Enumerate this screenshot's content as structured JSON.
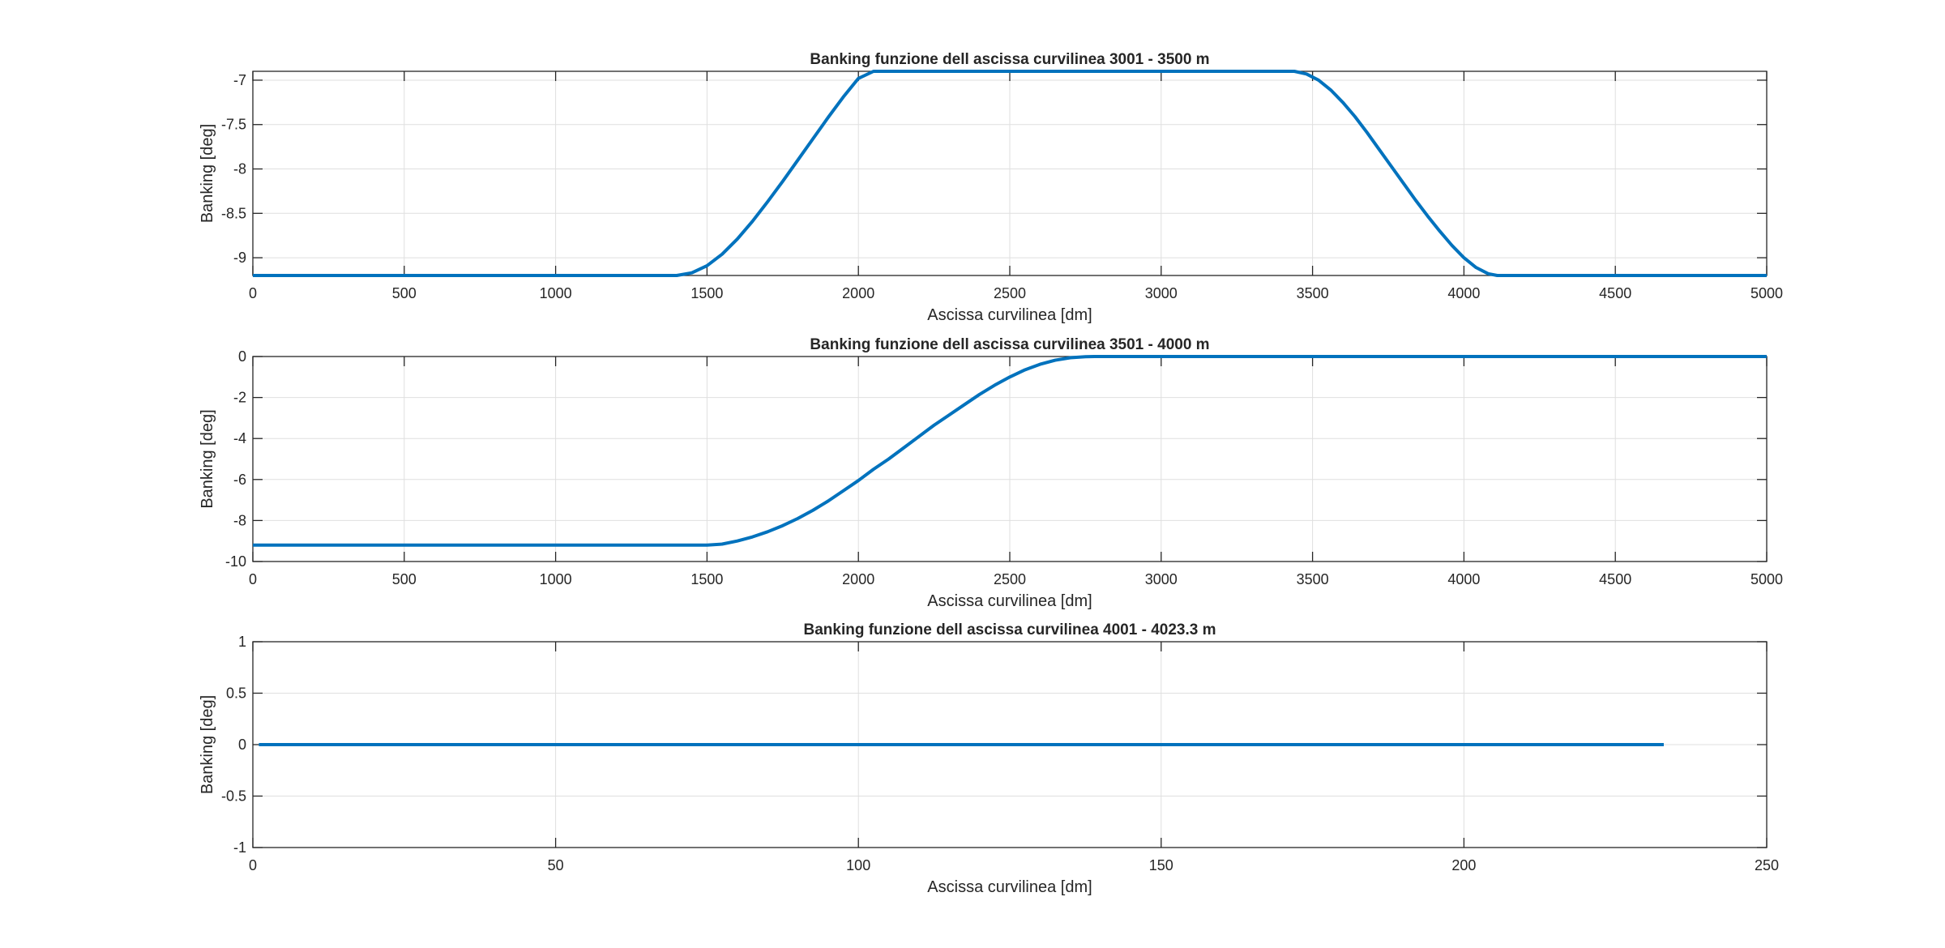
{
  "figure": {
    "background": "#ffffff"
  },
  "chart_data": [
    {
      "type": "line",
      "title": "Banking funzione dell ascissa curvilinea 3001 - 3500 m",
      "xlabel": "Ascissa curvilinea [dm]",
      "ylabel": "Banking [deg]",
      "xlim": [
        0,
        5000
      ],
      "ylim": [
        -9.2,
        -6.9
      ],
      "xticks": [
        0,
        500,
        1000,
        1500,
        2000,
        2500,
        3000,
        3500,
        4000,
        4500,
        5000
      ],
      "xtick_labels": [
        "0",
        "500",
        "1000",
        "1500",
        "2000",
        "2500",
        "3000",
        "3500",
        "4000",
        "4500",
        "5000"
      ],
      "yticks": [
        -9,
        -8.5,
        -8,
        -7.5,
        -7
      ],
      "ytick_labels": [
        "-9",
        "-8.5",
        "-8",
        "-7.5",
        "-7"
      ],
      "grid": true,
      "line_color": "#0072BD",
      "series": [
        {
          "x": [
            0,
            1400,
            1450,
            1500,
            1550,
            1600,
            1650,
            1700,
            1750,
            1800,
            1850,
            1900,
            1950,
            2000,
            2050,
            3440,
            3480,
            3520,
            3560,
            3600,
            3640,
            3680,
            3720,
            3760,
            3800,
            3840,
            3880,
            3920,
            3960,
            4000,
            4040,
            4080,
            4110,
            5000
          ],
          "y": [
            -9.2,
            -9.2,
            -9.17,
            -9.09,
            -8.96,
            -8.79,
            -8.59,
            -8.37,
            -8.14,
            -7.9,
            -7.66,
            -7.42,
            -7.19,
            -6.98,
            -6.9,
            -6.9,
            -6.93,
            -7.0,
            -7.11,
            -7.25,
            -7.41,
            -7.59,
            -7.78,
            -7.97,
            -8.16,
            -8.35,
            -8.53,
            -8.7,
            -8.86,
            -9.0,
            -9.11,
            -9.18,
            -9.2,
            -9.2
          ]
        }
      ]
    },
    {
      "type": "line",
      "title": "Banking funzione dell ascissa curvilinea 3501 - 4000 m",
      "xlabel": "Ascissa curvilinea [dm]",
      "ylabel": "Banking [deg]",
      "xlim": [
        0,
        5000
      ],
      "ylim": [
        -10,
        0
      ],
      "xticks": [
        0,
        500,
        1000,
        1500,
        2000,
        2500,
        3000,
        3500,
        4000,
        4500,
        5000
      ],
      "xtick_labels": [
        "0",
        "500",
        "1000",
        "1500",
        "2000",
        "2500",
        "3000",
        "3500",
        "4000",
        "4500",
        "5000"
      ],
      "yticks": [
        -10,
        -8,
        -6,
        -4,
        -2,
        0
      ],
      "ytick_labels": [
        "-10",
        "-8",
        "-6",
        "-4",
        "-2",
        "0"
      ],
      "grid": true,
      "line_color": "#0072BD",
      "series": [
        {
          "x": [
            0,
            1500,
            1550,
            1600,
            1650,
            1700,
            1750,
            1800,
            1850,
            1900,
            1950,
            2000,
            2050,
            2100,
            2150,
            2200,
            2250,
            2300,
            2350,
            2400,
            2450,
            2500,
            2550,
            2600,
            2650,
            2700,
            2750,
            2780,
            5000
          ],
          "y": [
            -9.2,
            -9.2,
            -9.15,
            -9.0,
            -8.8,
            -8.55,
            -8.25,
            -7.9,
            -7.5,
            -7.05,
            -6.55,
            -6.05,
            -5.5,
            -5.0,
            -4.45,
            -3.9,
            -3.35,
            -2.85,
            -2.35,
            -1.85,
            -1.4,
            -1.0,
            -0.65,
            -0.38,
            -0.18,
            -0.06,
            -0.01,
            0,
            0
          ]
        }
      ]
    },
    {
      "type": "line",
      "title": "Banking funzione dell ascissa curvilinea 4001 - 4023.3 m",
      "xlabel": "Ascissa curvilinea [dm]",
      "ylabel": "Banking [deg]",
      "xlim": [
        0,
        250
      ],
      "ylim": [
        -1,
        1
      ],
      "xticks": [
        0,
        50,
        100,
        150,
        200,
        250
      ],
      "xtick_labels": [
        "0",
        "50",
        "100",
        "150",
        "200",
        "250"
      ],
      "yticks": [
        -1,
        -0.5,
        0,
        0.5,
        1
      ],
      "ytick_labels": [
        "-1",
        "-0.5",
        "0",
        "0.5",
        "1"
      ],
      "grid": true,
      "line_color": "#0072BD",
      "series": [
        {
          "x": [
            1,
            233
          ],
          "y": [
            0,
            0
          ]
        }
      ]
    }
  ]
}
